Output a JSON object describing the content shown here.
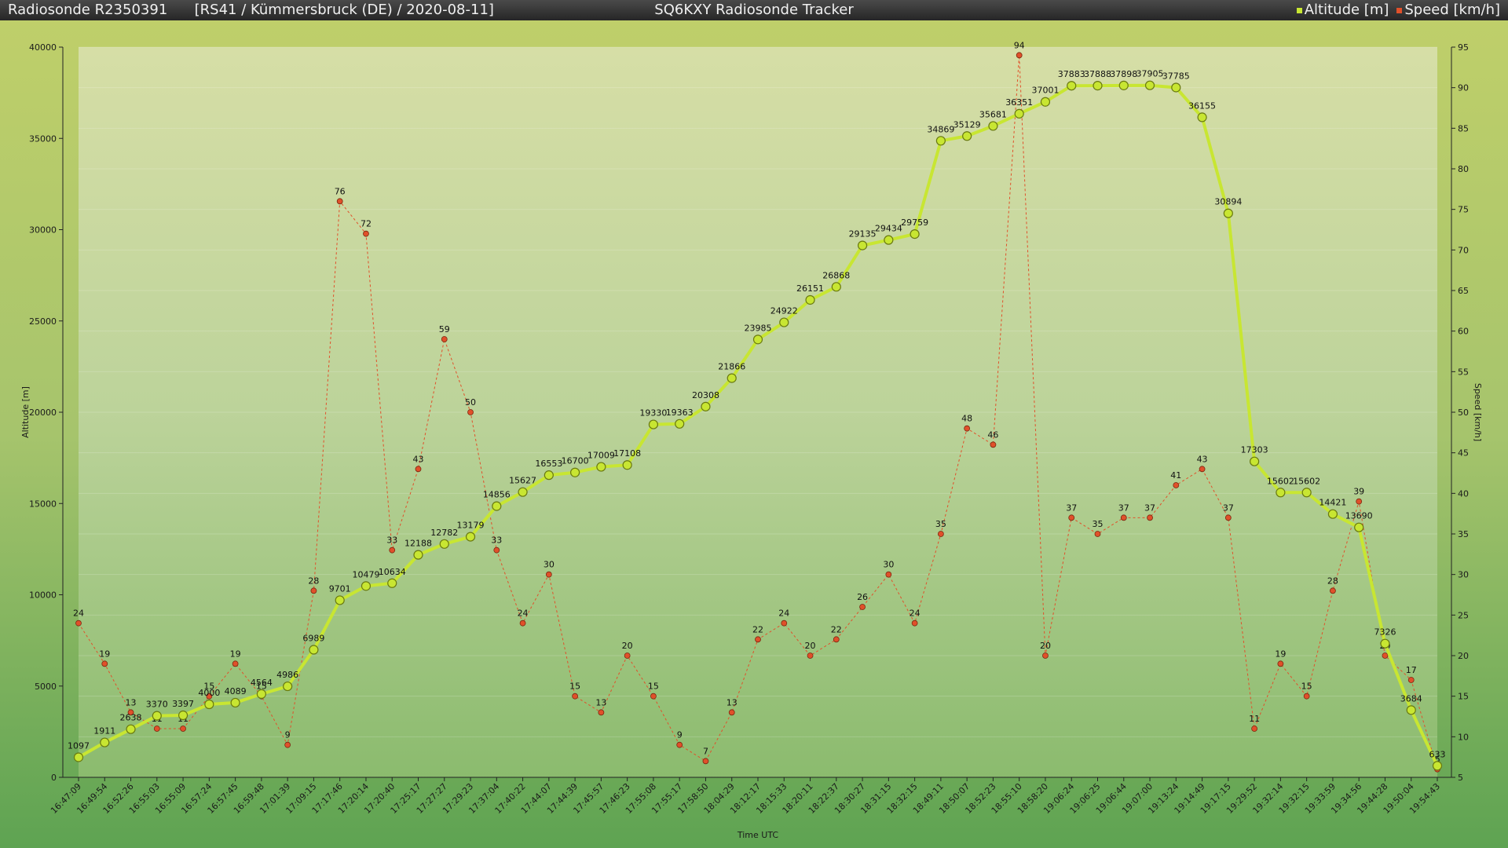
{
  "header": {
    "sonde_id": "Radiosonde R2350391",
    "info": "[RS41 / Kümmersbruck (DE) / 2020-08-11]",
    "app_title": "SQ6KXY Radiosonde Tracker",
    "legend": [
      {
        "label": "Altitude [m]",
        "color": "#c8e632"
      },
      {
        "label": "Speed [km/h]",
        "color": "#e0502a"
      }
    ]
  },
  "colors": {
    "altitude": "#c8e632",
    "speed": "#e0502a"
  },
  "chart_data": {
    "type": "line",
    "xlabel": "Time UTC",
    "ylabel": "Altitude [m]",
    "y2label": "Speed [km/h]",
    "ylim": [
      0,
      40000
    ],
    "y2lim": [
      5,
      95
    ],
    "yticks": [
      0,
      5000,
      10000,
      15000,
      20000,
      25000,
      30000,
      35000,
      40000
    ],
    "y2ticks": [
      5,
      10,
      15,
      20,
      25,
      30,
      35,
      40,
      45,
      50,
      55,
      60,
      65,
      70,
      75,
      80,
      85,
      90,
      95
    ],
    "categories": [
      "16:47:09",
      "16:49:54",
      "16:52:26",
      "16:55:03",
      "16:55:09",
      "16:57:24",
      "16:57:45",
      "16:59:48",
      "17:01:39",
      "17:09:15",
      "17:17:46",
      "17:20:14",
      "17:20:40",
      "17:25:17",
      "17:27:27",
      "17:29:23",
      "17:37:04",
      "17:40:22",
      "17:44:07",
      "17:44:39",
      "17:45:57",
      "17:46:23",
      "17:55:08",
      "17:55:17",
      "17:58:50",
      "18:04:29",
      "18:12:17",
      "18:15:33",
      "18:20:11",
      "18:22:37",
      "18:30:27",
      "18:31:15",
      "18:32:15",
      "18:49:11",
      "18:50:07",
      "18:52:23",
      "18:55:10",
      "18:58:20",
      "19:06:24",
      "19:06:25",
      "19:06:44",
      "19:07:00",
      "19:13:24",
      "19:14:49",
      "19:17:15",
      "19:29:52",
      "19:32:14",
      "19:32:15",
      "19:33:59",
      "19:34:56",
      "19:44:28",
      "19:50:04",
      "19:54:43"
    ],
    "series": [
      {
        "name": "Altitude [m]",
        "axis": "left",
        "values": [
          1097,
          1911,
          2638,
          3370,
          3397,
          4000,
          4089,
          4564,
          4986,
          6989,
          9701,
          10479,
          10634,
          12188,
          12782,
          13179,
          14856,
          15627,
          16553,
          16700,
          17009,
          17108,
          19330,
          19363,
          20308,
          21866,
          23985,
          24922,
          26151,
          26868,
          29135,
          29434,
          29759,
          34869,
          35129,
          35681,
          36351,
          37001,
          37883,
          37888,
          37898,
          37905,
          37785,
          36155,
          30894,
          17303,
          15602,
          15602,
          14421,
          13690,
          7326,
          3684,
          633
        ]
      },
      {
        "name": "Speed [km/h]",
        "axis": "right",
        "values": [
          24,
          19,
          13,
          11,
          11,
          15,
          19,
          15,
          9,
          28,
          76,
          72,
          33,
          43,
          59,
          50,
          33,
          24,
          30,
          15,
          13,
          20,
          15,
          9,
          7,
          13,
          22,
          24,
          20,
          22,
          26,
          30,
          24,
          35,
          48,
          46,
          94,
          20,
          37,
          35,
          37,
          37,
          41,
          43,
          37,
          11,
          19,
          15,
          28,
          39,
          20,
          17,
          6
        ]
      }
    ]
  }
}
